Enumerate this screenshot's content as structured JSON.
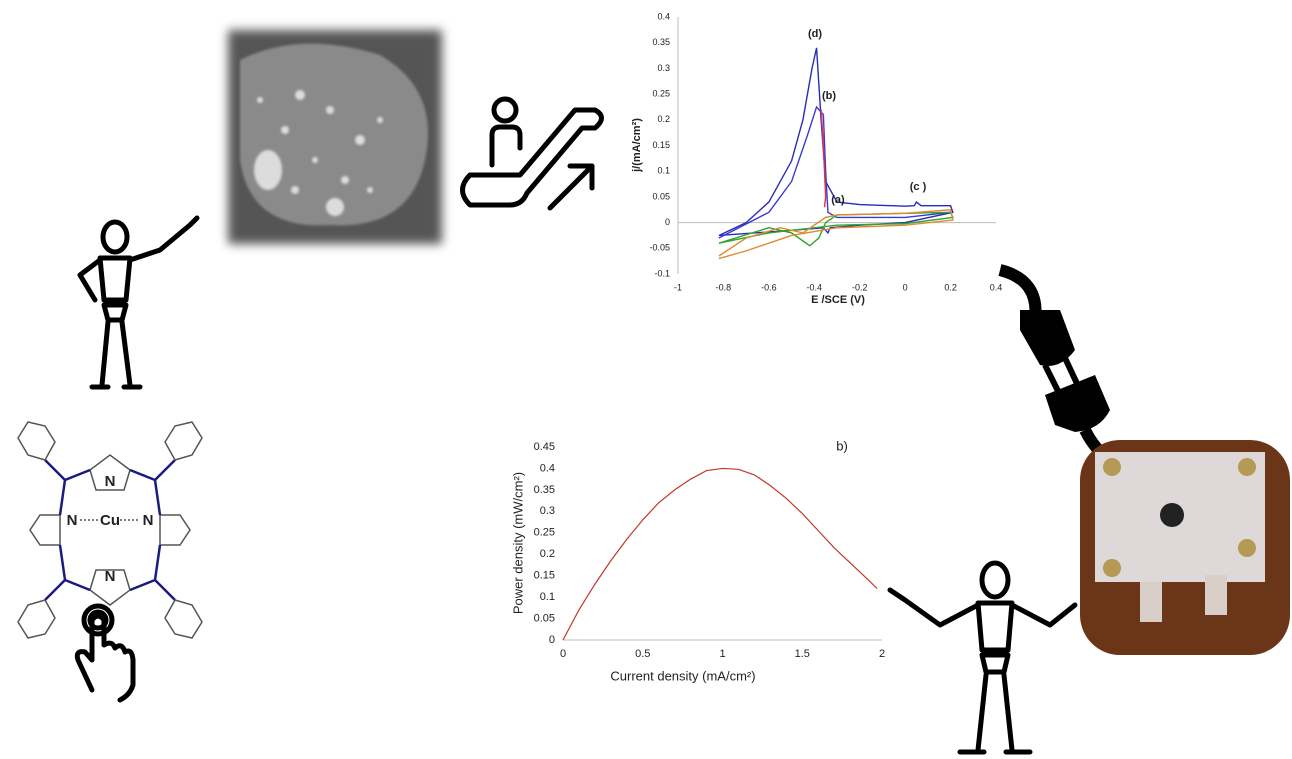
{
  "chart_data": [
    {
      "type": "line",
      "x_label": "E /SCE (V)",
      "y_label": "j/(mA/cm²)",
      "xlim": [
        -1,
        0.4
      ],
      "xticks": [
        -1,
        -0.8,
        -0.6,
        -0.4,
        -0.2,
        0,
        0.2,
        0.4
      ],
      "ylim": [
        -0.1,
        0.4
      ],
      "yticks": [
        -0.1,
        -0.05,
        0,
        0.05,
        0.1,
        0.15,
        0.2,
        0.25,
        0.3,
        0.35,
        0.4
      ],
      "annotations": [
        "(d)",
        "(b)",
        "(a)",
        "(c )"
      ],
      "series": [
        {
          "color": "#2b2bb8",
          "x": [
            -0.82,
            -0.7,
            -0.6,
            -0.5,
            -0.45,
            -0.41,
            -0.39,
            -0.37,
            -0.35,
            -0.3,
            -0.2,
            0,
            0.04,
            0.05,
            0.07,
            0.2,
            0.21,
            0,
            -0.2,
            -0.33,
            -0.34,
            -0.36,
            -0.5,
            -0.82
          ],
          "values": [
            -0.025,
            0,
            0.04,
            0.12,
            0.2,
            0.3,
            0.34,
            0.2,
            0.08,
            0.04,
            0.035,
            0.032,
            0.033,
            0.04,
            0.033,
            0.033,
            0.02,
            0,
            -0.005,
            -0.01,
            -0.02,
            -0.01,
            -0.015,
            -0.025
          ]
        },
        {
          "color": "#3a3ad0",
          "x": [
            -0.82,
            -0.6,
            -0.5,
            -0.43,
            -0.39,
            -0.36,
            -0.35,
            -0.34,
            -0.3,
            0,
            0.2
          ],
          "values": [
            -0.03,
            0.02,
            0.08,
            0.17,
            0.225,
            0.21,
            0.1,
            0.02,
            0.01,
            0.01,
            0.02
          ]
        },
        {
          "color": "#e0304a",
          "x": [
            -0.37,
            -0.36,
            -0.35,
            -0.355
          ],
          "values": [
            0.22,
            0.15,
            0.05,
            0.03
          ]
        },
        {
          "color": "#2fa52f",
          "x": [
            -0.82,
            -0.6,
            -0.5,
            -0.42,
            -0.38,
            -0.35,
            -0.3,
            0,
            0.2,
            0.21,
            0,
            -0.3,
            -0.6,
            -0.82
          ],
          "values": [
            -0.04,
            -0.01,
            -0.02,
            -0.045,
            -0.03,
            0,
            0.015,
            0.018,
            0.02,
            0.01,
            -0.002,
            -0.005,
            -0.02,
            -0.04
          ]
        },
        {
          "color": "#e08a2e",
          "x": [
            -0.82,
            -0.7,
            -0.55,
            -0.45,
            -0.35,
            -0.3,
            0,
            0.2,
            0.21,
            0,
            -0.3,
            -0.5,
            -0.7,
            -0.82
          ],
          "values": [
            -0.065,
            -0.03,
            -0.01,
            -0.02,
            0.01,
            0.015,
            0.018,
            0.025,
            0.005,
            -0.005,
            -0.01,
            -0.025,
            -0.055,
            -0.07
          ]
        }
      ]
    },
    {
      "type": "line",
      "x_label": "Current density  (mA/cm²)",
      "y_label": "Power density (mW/cm²)",
      "xlim": [
        0,
        2
      ],
      "xticks": [
        0,
        0.5,
        1,
        1.5,
        2
      ],
      "ylim": [
        0,
        0.45
      ],
      "yticks": [
        0,
        0.05,
        0.1,
        0.15,
        0.2,
        0.25,
        0.3,
        0.35,
        0.4,
        0.45
      ],
      "annotations": [
        "b)"
      ],
      "series": [
        {
          "color": "#c0392b",
          "x": [
            0,
            0.1,
            0.2,
            0.3,
            0.4,
            0.5,
            0.6,
            0.7,
            0.8,
            0.9,
            1,
            1.1,
            1.2,
            1.3,
            1.4,
            1.5,
            1.6,
            1.7,
            1.8,
            1.9,
            1.97
          ],
          "values": [
            0,
            0.07,
            0.13,
            0.185,
            0.235,
            0.28,
            0.32,
            0.35,
            0.375,
            0.395,
            0.4,
            0.398,
            0.385,
            0.36,
            0.33,
            0.295,
            0.255,
            0.215,
            0.18,
            0.145,
            0.12
          ]
        }
      ]
    }
  ],
  "structure_labels": [
    "N",
    "N",
    "Cu",
    "N",
    "N"
  ]
}
